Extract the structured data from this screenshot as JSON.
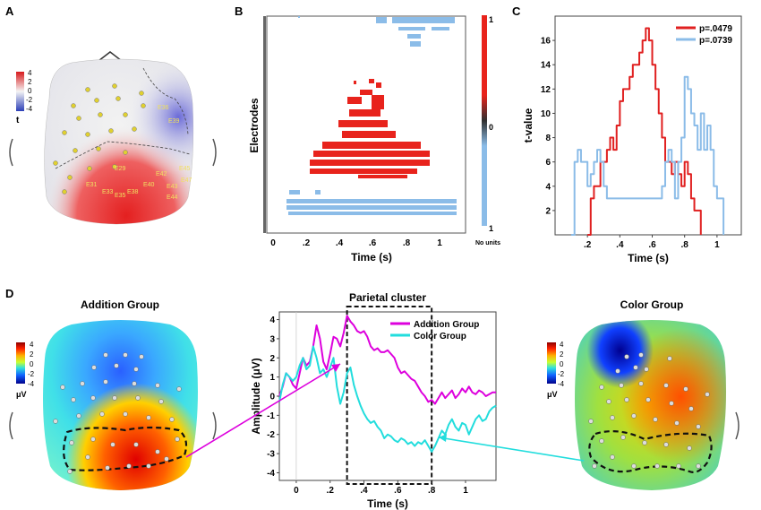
{
  "panels": {
    "A": {
      "letter": "A",
      "colorbar": {
        "ticks": [
          "4",
          "2",
          "0",
          "-2",
          "-4"
        ],
        "label": "t"
      },
      "electrode_labels": [
        "E36",
        "E39",
        "E29",
        "E45",
        "E42",
        "E47",
        "E31",
        "E40",
        "E43",
        "E33",
        "E35",
        "E38",
        "E44"
      ]
    },
    "B": {
      "letter": "B",
      "xlabel": "Time (s)",
      "ylabel": "Electrodes",
      "xticks": [
        "0",
        ".2",
        ".4",
        ".6",
        ".8",
        "1"
      ],
      "colorbar_ticks": [
        "1",
        "0",
        "1"
      ],
      "colorbar_caption": "No units",
      "raster_colors": {
        "positive": "#e8231c",
        "negative": "#8bbce8"
      }
    },
    "C": {
      "letter": "C"
    },
    "D": {
      "letter": "D",
      "addition_title": "Addition Group",
      "color_title": "Color Group",
      "left_colorbar": {
        "ticks": [
          "4",
          "2",
          "0",
          "-2",
          "-4"
        ],
        "unit": "μV"
      },
      "right_colorbar": {
        "ticks": [
          "4",
          "2",
          "0",
          "-2",
          "-4"
        ],
        "unit": "μV"
      }
    }
  },
  "chart_data": [
    {
      "id": "C",
      "type": "line",
      "title": "",
      "xlabel": "Time (s)",
      "ylabel": "t-value",
      "xlim": [
        0,
        1.15
      ],
      "ylim": [
        0,
        18
      ],
      "xticks": [
        0.2,
        0.4,
        0.6,
        0.8,
        1.0
      ],
      "xtick_labels": [
        ".2",
        ".4",
        ".6",
        ".8",
        "1"
      ],
      "yticks": [
        2,
        4,
        6,
        8,
        10,
        12,
        14,
        16
      ],
      "legend_position": "top-right",
      "series": [
        {
          "name": "p=.0479",
          "color": "#e02020",
          "x": [
            0.2,
            0.22,
            0.24,
            0.26,
            0.28,
            0.3,
            0.32,
            0.34,
            0.36,
            0.38,
            0.4,
            0.42,
            0.44,
            0.46,
            0.48,
            0.5,
            0.52,
            0.54,
            0.56,
            0.58,
            0.6,
            0.62,
            0.64,
            0.66,
            0.68,
            0.7,
            0.72,
            0.74,
            0.76,
            0.78,
            0.8,
            0.82,
            0.84,
            0.86,
            0.88,
            0.9
          ],
          "y": [
            0,
            3,
            4,
            4,
            6,
            6,
            7,
            8,
            7,
            9,
            11,
            12,
            12,
            13,
            14,
            14,
            15,
            16,
            17,
            16,
            14,
            12,
            10,
            8,
            6,
            6,
            5,
            6,
            5,
            4,
            6,
            5,
            3,
            2,
            2,
            0
          ]
        },
        {
          "name": "p=.0739",
          "color": "#8bbce8",
          "x": [
            0.1,
            0.12,
            0.14,
            0.16,
            0.18,
            0.2,
            0.22,
            0.24,
            0.26,
            0.28,
            0.3,
            0.32,
            0.34,
            0.36,
            0.38,
            0.4,
            0.42,
            0.44,
            0.46,
            0.48,
            0.5,
            0.52,
            0.54,
            0.56,
            0.58,
            0.6,
            0.62,
            0.64,
            0.66,
            0.68,
            0.7,
            0.72,
            0.74,
            0.76,
            0.78,
            0.8,
            0.82,
            0.84,
            0.86,
            0.88,
            0.9,
            0.92,
            0.94,
            0.96,
            0.98,
            1.0,
            1.02,
            1.04
          ],
          "y": [
            0,
            6,
            7,
            6,
            6,
            4,
            5,
            6,
            7,
            6,
            4,
            3,
            3,
            3,
            3,
            3,
            3,
            3,
            3,
            3,
            3,
            3,
            3,
            3,
            3,
            3,
            3,
            3,
            4,
            6,
            7,
            6,
            3,
            6,
            8,
            13,
            12,
            10,
            9,
            7,
            10,
            7,
            9,
            7,
            4,
            3,
            3,
            0
          ]
        }
      ]
    },
    {
      "id": "D-middle",
      "type": "line",
      "title": "Parietal cluster",
      "xlabel": "Time (s)",
      "ylabel": "Amplitude (μV)",
      "xlim": [
        -0.1,
        1.18
      ],
      "ylim": [
        -4.4,
        4.4
      ],
      "xticks": [
        0,
        0.2,
        0.4,
        0.6,
        0.8,
        1.0
      ],
      "xtick_labels": [
        "0",
        ".2",
        ".4",
        ".6",
        ".8",
        "1"
      ],
      "yticks": [
        4,
        3,
        2,
        1,
        0,
        -1,
        -2,
        -3,
        -4
      ],
      "ytick_labels": [
        "4",
        "3",
        "2",
        "1",
        "0",
        "-1",
        "-2",
        "-3",
        "-4"
      ],
      "legend_position": "top-right",
      "highlight_window": [
        0.3,
        0.8
      ],
      "series": [
        {
          "name": "Addition Group",
          "color": "#dd00dd",
          "x": [
            -0.1,
            -0.08,
            -0.06,
            -0.04,
            -0.02,
            0.0,
            0.02,
            0.04,
            0.06,
            0.08,
            0.1,
            0.12,
            0.14,
            0.16,
            0.18,
            0.2,
            0.22,
            0.24,
            0.26,
            0.28,
            0.3,
            0.32,
            0.34,
            0.36,
            0.38,
            0.4,
            0.42,
            0.44,
            0.46,
            0.48,
            0.5,
            0.52,
            0.54,
            0.56,
            0.58,
            0.6,
            0.62,
            0.64,
            0.66,
            0.68,
            0.7,
            0.72,
            0.74,
            0.76,
            0.78,
            0.8,
            0.82,
            0.84,
            0.86,
            0.88,
            0.9,
            0.92,
            0.94,
            0.96,
            0.98,
            1.0,
            1.02,
            1.04,
            1.06,
            1.08,
            1.1,
            1.12,
            1.14,
            1.16,
            1.18
          ],
          "y": [
            0.0,
            0.5,
            1.2,
            1.0,
            0.6,
            0.4,
            1.2,
            2.0,
            1.6,
            1.8,
            2.6,
            3.7,
            3.0,
            1.8,
            1.4,
            2.2,
            3.1,
            3.0,
            2.6,
            3.3,
            4.2,
            3.9,
            3.7,
            3.4,
            3.3,
            3.4,
            3.1,
            2.6,
            2.4,
            2.5,
            2.3,
            2.3,
            2.4,
            2.2,
            2.0,
            1.5,
            1.2,
            1.3,
            1.1,
            0.9,
            0.8,
            0.5,
            0.2,
            0.0,
            -0.3,
            -0.2,
            -0.4,
            -0.1,
            0.2,
            -0.1,
            0.1,
            0.3,
            -0.1,
            0.1,
            0.4,
            0.2,
            0.5,
            0.2,
            0.1,
            0.3,
            0.2,
            0.0,
            0.1,
            0.2,
            0.2
          ]
        },
        {
          "name": "Color Group",
          "color": "#22dddd",
          "x": [
            -0.1,
            -0.08,
            -0.06,
            -0.04,
            -0.02,
            0.0,
            0.02,
            0.04,
            0.06,
            0.08,
            0.1,
            0.12,
            0.14,
            0.16,
            0.18,
            0.2,
            0.22,
            0.24,
            0.26,
            0.28,
            0.3,
            0.32,
            0.34,
            0.36,
            0.38,
            0.4,
            0.42,
            0.44,
            0.46,
            0.48,
            0.5,
            0.52,
            0.54,
            0.56,
            0.58,
            0.6,
            0.62,
            0.64,
            0.66,
            0.68,
            0.7,
            0.72,
            0.74,
            0.76,
            0.78,
            0.8,
            0.82,
            0.84,
            0.86,
            0.88,
            0.9,
            0.92,
            0.94,
            0.96,
            0.98,
            1.0,
            1.02,
            1.04,
            1.06,
            1.08,
            1.1,
            1.12,
            1.14,
            1.16,
            1.18
          ],
          "y": [
            -0.3,
            0.6,
            1.2,
            1.0,
            0.8,
            1.0,
            1.6,
            2.0,
            1.4,
            1.6,
            2.6,
            2.0,
            1.2,
            1.4,
            1.0,
            1.5,
            2.0,
            0.5,
            -0.4,
            0.2,
            1.2,
            1.5,
            0.6,
            0.0,
            -0.5,
            -0.9,
            -1.2,
            -1.4,
            -1.3,
            -1.6,
            -1.8,
            -2.2,
            -2.0,
            -2.1,
            -2.3,
            -2.4,
            -2.2,
            -2.3,
            -2.5,
            -2.4,
            -2.6,
            -2.4,
            -2.5,
            -2.3,
            -2.6,
            -2.9,
            -2.6,
            -2.2,
            -1.8,
            -2.0,
            -1.5,
            -1.2,
            -1.6,
            -1.8,
            -1.4,
            -1.5,
            -2.0,
            -1.6,
            -1.2,
            -1.0,
            -1.3,
            -1.2,
            -0.8,
            -0.6,
            -0.5
          ]
        }
      ]
    }
  ]
}
